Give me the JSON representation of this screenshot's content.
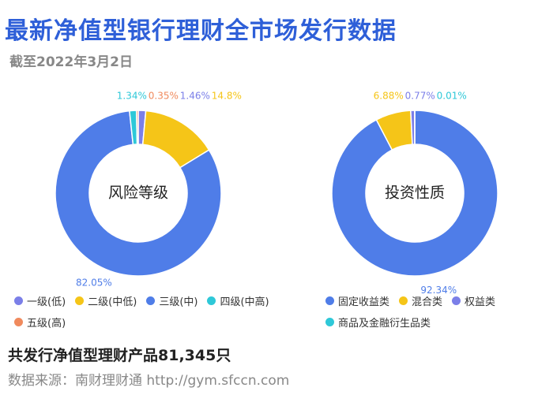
{
  "header": {
    "title": "最新净值型银行理财全市场发行数据",
    "subtitle": "截至2022年3月2日"
  },
  "chart_data": [
    {
      "type": "donut",
      "title": "风险等级",
      "categories": [
        "一级(低)",
        "二级(中低)",
        "三级(中)",
        "四级(中高)",
        "五级(高)"
      ],
      "values": [
        1.46,
        14.8,
        82.05,
        1.34,
        0.35
      ],
      "value_labels": [
        "1.46%",
        "14.8%",
        "82.05%",
        "1.34%",
        "0.35%"
      ],
      "colors": [
        "#7b7fe8",
        "#f5c518",
        "#4f7de8",
        "#2ec8d8",
        "#f08a5d"
      ]
    },
    {
      "type": "donut",
      "title": "投资性质",
      "categories": [
        "固定收益类",
        "混合类",
        "权益类",
        "商品及金融衍生品类"
      ],
      "values": [
        92.34,
        6.88,
        0.77,
        0.01
      ],
      "value_labels": [
        "92.34%",
        "6.88%",
        "0.77%",
        "0.01%"
      ],
      "colors": [
        "#4f7de8",
        "#f5c518",
        "#7b7fe8",
        "#2ec8d8"
      ]
    }
  ],
  "footer": {
    "note": "共发行净值型理财产品81,345只",
    "source": "数据来源：南财理财通 http://gym.sfccn.com"
  }
}
